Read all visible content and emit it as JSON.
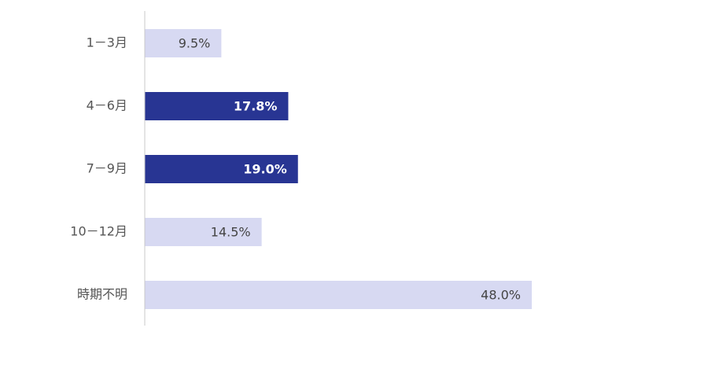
{
  "chart_data": {
    "type": "bar",
    "orientation": "horizontal",
    "categories": [
      "1－3月",
      "4－6月",
      "7－9月",
      "10－12月",
      "時期不明"
    ],
    "values": [
      9.5,
      17.8,
      19.0,
      14.5,
      48.0
    ],
    "value_labels": [
      "9.5%",
      "17.8%",
      "19.0%",
      "14.5%",
      "48.0%"
    ],
    "highlighted": [
      false,
      true,
      true,
      false,
      false
    ],
    "xlim": [
      0,
      100
    ],
    "grid": false,
    "title": "",
    "xlabel": "",
    "ylabel": ""
  },
  "colors": {
    "highlight_bar": "#283593",
    "normal_bar": "#d7d9f2",
    "highlight_text": "#ffffff",
    "normal_text": "#444444",
    "axis_line": "#c8c8c8",
    "category_text": "#555555"
  }
}
